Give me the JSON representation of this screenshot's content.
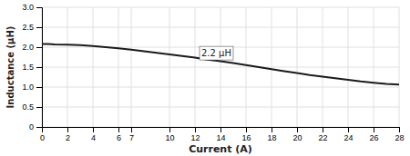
{
  "chart_data": {
    "type": "line",
    "xlabel": "Current (A)",
    "ylabel": "Inductance (μH)",
    "x": [
      0,
      0.5,
      1,
      2,
      3,
      4,
      5,
      6,
      7,
      8,
      9,
      10,
      11,
      12,
      13,
      14,
      15,
      16,
      17,
      18,
      19,
      20,
      21,
      22,
      23,
      24,
      25,
      26,
      27,
      28
    ],
    "values": [
      2.08,
      2.08,
      2.07,
      2.06,
      2.05,
      2.03,
      2.0,
      1.97,
      1.94,
      1.9,
      1.86,
      1.82,
      1.78,
      1.74,
      1.69,
      1.65,
      1.6,
      1.55,
      1.5,
      1.45,
      1.4,
      1.35,
      1.3,
      1.26,
      1.22,
      1.18,
      1.14,
      1.11,
      1.08,
      1.06
    ],
    "color": "#1a1a1a",
    "xlim": [
      0,
      28
    ],
    "ylim": [
      0,
      3.0
    ],
    "xticks": [
      0,
      2,
      4,
      6,
      7,
      10,
      12,
      14,
      16,
      18,
      20,
      22,
      24,
      26,
      28
    ],
    "yticks": [
      0,
      0.5,
      {
        "value": 1.0,
        "label": "1.0"
      },
      1.5,
      {
        "value": 2.0,
        "label": "2.0"
      },
      2.5,
      {
        "value": 3.0,
        "label": "3.0"
      }
    ],
    "grid": true,
    "annotations": [
      {
        "text": "2.2 μH",
        "x": 12.5,
        "y": 1.85
      }
    ]
  }
}
